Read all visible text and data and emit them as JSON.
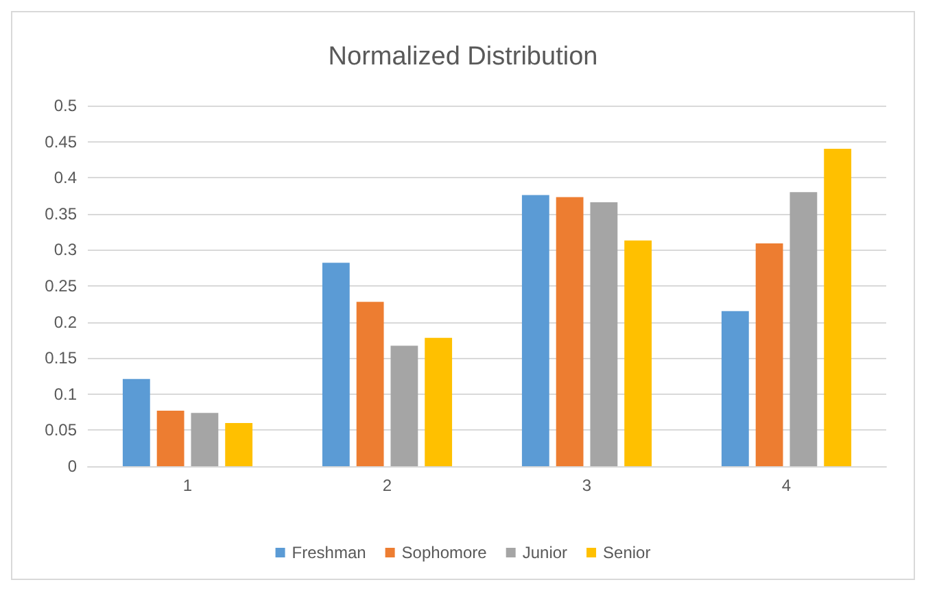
{
  "chart_data": {
    "type": "bar",
    "title": "Normalized Distribution",
    "categories": [
      "1",
      "2",
      "3",
      "4"
    ],
    "series": [
      {
        "name": "Freshman",
        "color": "#5b9bd5",
        "values": [
          0.121,
          0.282,
          0.376,
          0.215
        ]
      },
      {
        "name": "Sophomore",
        "color": "#ed7d31",
        "values": [
          0.077,
          0.228,
          0.373,
          0.309
        ]
      },
      {
        "name": "Junior",
        "color": "#a5a5a5",
        "values": [
          0.074,
          0.167,
          0.366,
          0.38
        ]
      },
      {
        "name": "Senior",
        "color": "#ffc000",
        "values": [
          0.06,
          0.178,
          0.313,
          0.44
        ]
      }
    ],
    "ylim": [
      0,
      0.5
    ],
    "yticks": [
      0,
      0.05,
      0.1,
      0.15,
      0.2,
      0.25,
      0.3,
      0.35,
      0.4,
      0.45,
      0.5
    ],
    "grid": "y",
    "legend": "bottom"
  }
}
